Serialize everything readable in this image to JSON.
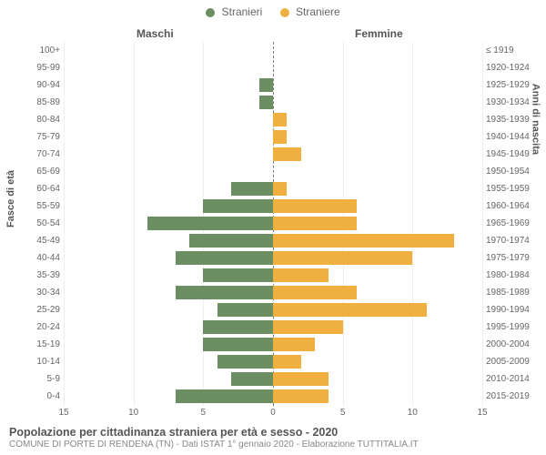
{
  "chart": {
    "type": "population-pyramid",
    "background_color": "#ffffff",
    "grid_color": "#eeeeee",
    "center_line_color": "#777777",
    "text_color": "#666666",
    "heading_color": "#555555",
    "male_color": "#6b8e63",
    "female_color": "#f0b040",
    "legend": {
      "male": "Stranieri",
      "female": "Straniere"
    },
    "column_titles": {
      "left": "Maschi",
      "right": "Femmine"
    },
    "y_axis_left": "Fasce di età",
    "y_axis_right": "Anni di nascita",
    "x_axis": {
      "min": -15,
      "max": 15,
      "ticks": [
        15,
        10,
        5,
        0,
        5,
        10,
        15
      ],
      "tick_positions_pct": [
        0,
        16.67,
        33.33,
        50,
        66.67,
        83.33,
        100
      ]
    },
    "rows": [
      {
        "age": "100+",
        "birth": "≤ 1919",
        "m": 0,
        "f": 0
      },
      {
        "age": "95-99",
        "birth": "1920-1924",
        "m": 0,
        "f": 0
      },
      {
        "age": "90-94",
        "birth": "1925-1929",
        "m": 1,
        "f": 0
      },
      {
        "age": "85-89",
        "birth": "1930-1934",
        "m": 1,
        "f": 0
      },
      {
        "age": "80-84",
        "birth": "1935-1939",
        "m": 0,
        "f": 1
      },
      {
        "age": "75-79",
        "birth": "1940-1944",
        "m": 0,
        "f": 1
      },
      {
        "age": "70-74",
        "birth": "1945-1949",
        "m": 0,
        "f": 2
      },
      {
        "age": "65-69",
        "birth": "1950-1954",
        "m": 0,
        "f": 0
      },
      {
        "age": "60-64",
        "birth": "1955-1959",
        "m": 3,
        "f": 1
      },
      {
        "age": "55-59",
        "birth": "1960-1964",
        "m": 5,
        "f": 6
      },
      {
        "age": "50-54",
        "birth": "1965-1969",
        "m": 9,
        "f": 6
      },
      {
        "age": "45-49",
        "birth": "1970-1974",
        "m": 6,
        "f": 13
      },
      {
        "age": "40-44",
        "birth": "1975-1979",
        "m": 7,
        "f": 10
      },
      {
        "age": "35-39",
        "birth": "1980-1984",
        "m": 5,
        "f": 4
      },
      {
        "age": "30-34",
        "birth": "1985-1989",
        "m": 7,
        "f": 6
      },
      {
        "age": "25-29",
        "birth": "1990-1994",
        "m": 4,
        "f": 11
      },
      {
        "age": "20-24",
        "birth": "1995-1999",
        "m": 5,
        "f": 5
      },
      {
        "age": "15-19",
        "birth": "2000-2004",
        "m": 5,
        "f": 3
      },
      {
        "age": "10-14",
        "birth": "2005-2009",
        "m": 4,
        "f": 2
      },
      {
        "age": "5-9",
        "birth": "2010-2014",
        "m": 3,
        "f": 4
      },
      {
        "age": "0-4",
        "birth": "2015-2019",
        "m": 7,
        "f": 4
      }
    ],
    "footer_title": "Popolazione per cittadinanza straniera per età e sesso - 2020",
    "footer_sub": "COMUNE DI PORTE DI RENDENA (TN) - Dati ISTAT 1° gennaio 2020 - Elaborazione TUTTITALIA.IT"
  }
}
